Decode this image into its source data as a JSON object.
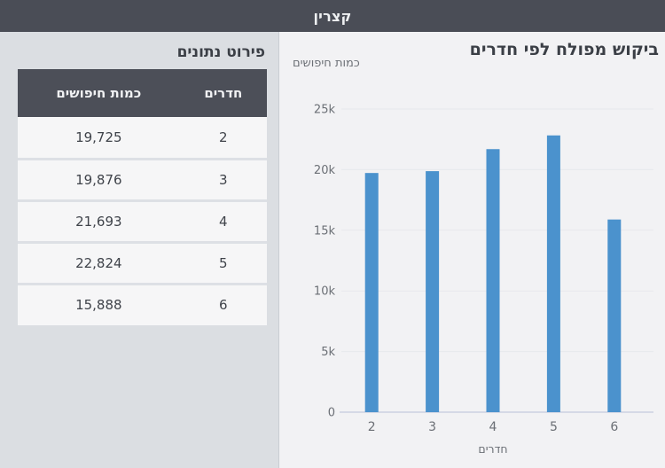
{
  "header": {
    "title": "קצרין"
  },
  "detail_panel": {
    "title": "פירוט נתונים",
    "table": {
      "columns": [
        "חדרים",
        "כמות חיפושים"
      ],
      "rows": [
        [
          "2",
          "19,725"
        ],
        [
          "3",
          "19,876"
        ],
        [
          "4",
          "21,693"
        ],
        [
          "5",
          "22,824"
        ],
        [
          "6",
          "15,888"
        ]
      ]
    }
  },
  "chart_data": {
    "type": "bar",
    "title": "ביקוש מפולח לפי חדרים",
    "xlabel": "חדרים",
    "ylabel": "כמות חיפושים",
    "categories": [
      "2",
      "3",
      "4",
      "5",
      "6"
    ],
    "values": [
      19725,
      19876,
      21693,
      22824,
      15888
    ],
    "ylim": [
      0,
      25000
    ],
    "yticks": [
      0,
      5000,
      10000,
      15000,
      20000,
      25000
    ],
    "ytick_labels": [
      "0",
      "5k",
      "10k",
      "15k",
      "20k",
      "25k"
    ],
    "grid": true,
    "legend": false,
    "bar_color": "#4b92cd"
  },
  "colors": {
    "appbar_bg": "#4a4d56",
    "table_header_bg": "#4c4f58",
    "left_panel_bg": "#dbdee2",
    "right_panel_bg": "#f2f2f4",
    "row_bg": "#f6f6f7",
    "bar": "#4b92cd",
    "gridline": "#e7e8ec",
    "axis_line": "#d5d9e6",
    "text_dark": "#3b3f46",
    "text_gray": "#6b6f75"
  }
}
